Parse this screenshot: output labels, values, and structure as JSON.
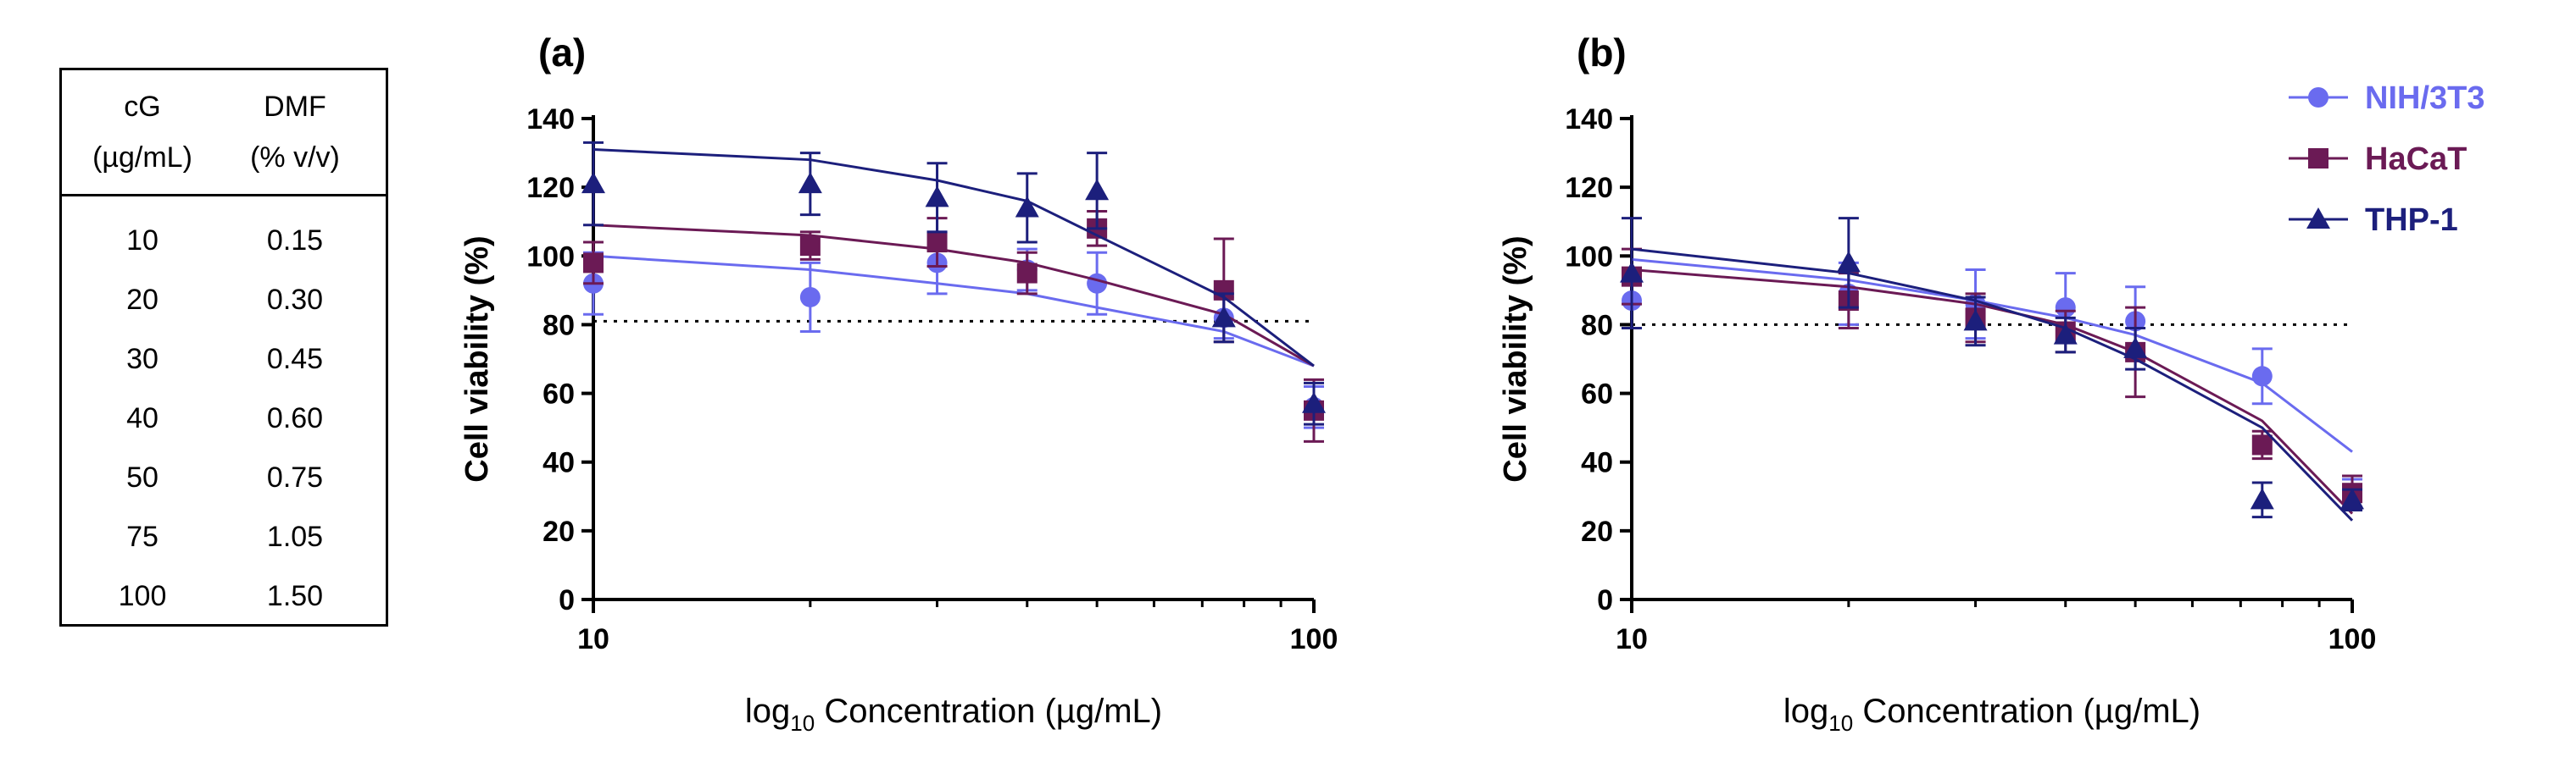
{
  "table": {
    "headers": [
      [
        "cG",
        "(µg/mL)"
      ],
      [
        "DMF",
        "(% v/v)"
      ]
    ],
    "rows": [
      [
        "10",
        "0.15"
      ],
      [
        "20",
        "0.30"
      ],
      [
        "30",
        "0.45"
      ],
      [
        "40",
        "0.60"
      ],
      [
        "50",
        "0.75"
      ],
      [
        "75",
        "1.05"
      ],
      [
        "100",
        "1.50"
      ]
    ]
  },
  "colors": {
    "nih": "#6a6bef",
    "hacat": "#6b1a55",
    "thp": "#1c1f7c",
    "refline": "#000000"
  },
  "legend": [
    "NIH/3T3",
    "HaCaT",
    "THP-1"
  ],
  "chart_data": [
    {
      "type": "scatter",
      "panel_label": "(a)",
      "xscale": "log10",
      "xlim": [
        10,
        100
      ],
      "ylim": [
        0,
        140
      ],
      "xticks": [
        "10",
        "100"
      ],
      "yticks": [
        "0",
        "20",
        "40",
        "60",
        "80",
        "100",
        "120",
        "140"
      ],
      "xlabel_prefix": "log",
      "xlabel_sub": "10",
      "xlabel_rest": " Concentration (µg/mL)",
      "ylabel": "Cell viability (%)",
      "reference_line": 81,
      "x": [
        10,
        20,
        30,
        40,
        50,
        75,
        100
      ],
      "series": [
        {
          "name": "NIH/3T3",
          "marker": "circle",
          "values": [
            92,
            88,
            98,
            96,
            92,
            82,
            56
          ],
          "errors": [
            9,
            10,
            9,
            6,
            9,
            6,
            6
          ],
          "fit": [
            100,
            96,
            92,
            89,
            85,
            78,
            68
          ]
        },
        {
          "name": "HaCaT",
          "marker": "square",
          "values": [
            98,
            103,
            104,
            95,
            108,
            90,
            55
          ],
          "errors": [
            6,
            4,
            7,
            6,
            5,
            15,
            9
          ],
          "fit": [
            109,
            106,
            102,
            98,
            93,
            83,
            68
          ]
        },
        {
          "name": "THP-1",
          "marker": "triangle",
          "values": [
            121,
            121,
            117,
            114,
            119,
            82,
            57
          ],
          "errors": [
            12,
            9,
            10,
            10,
            11,
            7,
            6
          ],
          "fit": [
            131,
            128,
            122,
            116,
            106,
            88,
            68
          ]
        }
      ]
    },
    {
      "type": "scatter",
      "panel_label": "(b)",
      "xscale": "log10",
      "xlim": [
        10,
        100
      ],
      "ylim": [
        0,
        140
      ],
      "xticks": [
        "10",
        "100"
      ],
      "yticks": [
        "0",
        "20",
        "40",
        "60",
        "80",
        "100",
        "120",
        "140"
      ],
      "xlabel_prefix": "log",
      "xlabel_sub": "10",
      "xlabel_rest": " Concentration (µg/mL)",
      "ylabel": "Cell viability (%)",
      "reference_line": 80,
      "x": [
        10,
        20,
        30,
        40,
        50,
        75,
        100
      ],
      "series": [
        {
          "name": "NIH/3T3",
          "marker": "circle",
          "values": [
            87,
            89,
            86,
            85,
            81,
            65,
            31
          ],
          "errors": [
            8,
            9,
            10,
            10,
            10,
            8,
            4
          ],
          "fit": [
            99,
            93,
            87,
            82,
            77,
            63,
            43
          ]
        },
        {
          "name": "HaCaT",
          "marker": "square",
          "values": [
            94,
            87,
            82,
            78,
            72,
            45,
            31
          ],
          "errors": [
            8,
            8,
            7,
            6,
            13,
            4,
            5
          ],
          "fit": [
            96,
            91,
            86,
            80,
            72,
            52,
            25
          ]
        },
        {
          "name": "THP-1",
          "marker": "triangle",
          "values": [
            95,
            98,
            81,
            77,
            73,
            29,
            29
          ],
          "errors": [
            16,
            13,
            7,
            5,
            6,
            5,
            3
          ],
          "fit": [
            102,
            95,
            87,
            79,
            70,
            50,
            23
          ]
        }
      ]
    }
  ]
}
